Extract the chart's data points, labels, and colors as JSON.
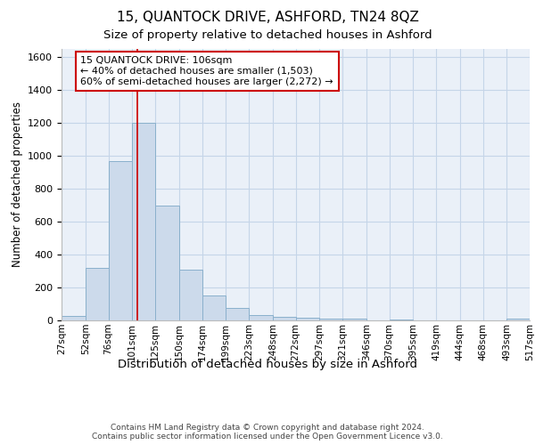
{
  "title": "15, QUANTOCK DRIVE, ASHFORD, TN24 8QZ",
  "subtitle": "Size of property relative to detached houses in Ashford",
  "xlabel": "Distribution of detached houses by size in Ashford",
  "ylabel": "Number of detached properties",
  "bin_labels": [
    "27sqm",
    "52sqm",
    "76sqm",
    "101sqm",
    "125sqm",
    "150sqm",
    "174sqm",
    "199sqm",
    "223sqm",
    "248sqm",
    "272sqm",
    "297sqm",
    "321sqm",
    "346sqm",
    "370sqm",
    "395sqm",
    "419sqm",
    "444sqm",
    "468sqm",
    "493sqm",
    "517sqm"
  ],
  "bin_edges": [
    27,
    52,
    76,
    101,
    125,
    150,
    174,
    199,
    223,
    248,
    272,
    297,
    321,
    346,
    370,
    395,
    419,
    444,
    468,
    493,
    517
  ],
  "bar_heights": [
    25,
    320,
    970,
    1200,
    700,
    310,
    150,
    75,
    30,
    20,
    15,
    10,
    10,
    0,
    5,
    0,
    0,
    0,
    0,
    10
  ],
  "bar_color": "#ccdaeb",
  "bar_edge_color": "#8ab0cc",
  "grid_color": "#c5d5e8",
  "background_color": "#eaf0f8",
  "red_line_x": 106,
  "annotation_line1": "15 QUANTOCK DRIVE: 106sqm",
  "annotation_line2": "← 40% of detached houses are smaller (1,503)",
  "annotation_line3": "60% of semi-detached houses are larger (2,272) →",
  "annotation_box_color": "#cc0000",
  "ylim": [
    0,
    1650
  ],
  "yticks": [
    0,
    200,
    400,
    600,
    800,
    1000,
    1200,
    1400,
    1600
  ],
  "footer": "Contains HM Land Registry data © Crown copyright and database right 2024.\nContains public sector information licensed under the Open Government Licence v3.0.",
  "title_fontsize": 11,
  "subtitle_fontsize": 9.5,
  "xlabel_fontsize": 9.5,
  "ylabel_fontsize": 8.5,
  "tick_fontsize": 8,
  "annotation_fontsize": 8,
  "footer_fontsize": 6.5
}
